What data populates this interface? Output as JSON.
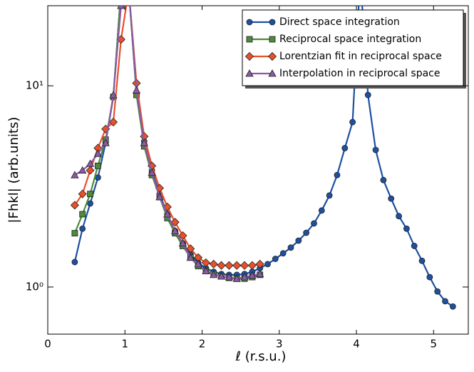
{
  "chart_data": {
    "type": "line",
    "log_y": true,
    "xlabel": "ℓ (r.s.u.)",
    "ylabel": "|Fhkl| (arb.units)",
    "xlim": [
      0,
      5.45
    ],
    "xticks": [
      0,
      1,
      2,
      3,
      4,
      5
    ],
    "ylim": [
      0.583,
      25
    ],
    "yticks": [
      {
        "value": 1,
        "label": "10⁰"
      },
      {
        "value": 10,
        "label": "10¹"
      }
    ],
    "legend": "upper right",
    "series": [
      {
        "name": "Direct space integration",
        "color": "#1d50a0",
        "marker": "circle",
        "x": [
          0.35,
          0.45,
          0.55,
          0.65,
          0.75,
          0.85,
          0.95,
          1.05,
          1.15,
          1.25,
          1.35,
          1.45,
          1.55,
          1.65,
          1.75,
          1.85,
          1.95,
          2.05,
          2.15,
          2.25,
          2.35,
          2.45,
          2.55,
          2.65,
          2.75,
          2.85,
          2.95,
          3.05,
          3.15,
          3.25,
          3.35,
          3.45,
          3.55,
          3.65,
          3.75,
          3.85,
          3.95,
          4.05,
          4.15,
          4.25,
          4.35,
          4.45,
          4.55,
          4.65,
          4.75,
          4.85,
          4.95,
          5.05,
          5.15,
          5.25
        ],
        "values": [
          1.33,
          1.95,
          2.6,
          3.5,
          5.2,
          8.8,
          30,
          30,
          9.2,
          5.3,
          3.8,
          2.9,
          2.3,
          1.9,
          1.65,
          1.45,
          1.32,
          1.24,
          1.19,
          1.16,
          1.15,
          1.15,
          1.16,
          1.19,
          1.24,
          1.3,
          1.38,
          1.47,
          1.57,
          1.7,
          1.86,
          2.07,
          2.4,
          2.85,
          3.6,
          4.9,
          6.6,
          35,
          9.0,
          4.8,
          3.4,
          2.75,
          2.25,
          1.95,
          1.6,
          1.35,
          1.12,
          0.95,
          0.85,
          0.8
        ]
      },
      {
        "name": "Reciprocal space integration",
        "color": "#4e8a3c",
        "marker": "square",
        "x": [
          0.35,
          0.45,
          0.55,
          0.65,
          0.75,
          0.85,
          0.95,
          1.05,
          1.15,
          1.25,
          1.35,
          1.45,
          1.55,
          1.65,
          1.75,
          1.85,
          1.95,
          2.05,
          2.15,
          2.25,
          2.35,
          2.45,
          2.55,
          2.65,
          2.75
        ],
        "values": [
          1.85,
          2.3,
          2.9,
          4.0,
          5.4,
          8.8,
          30,
          30,
          9.0,
          5.0,
          3.6,
          2.8,
          2.2,
          1.85,
          1.6,
          1.4,
          1.27,
          1.2,
          1.16,
          1.13,
          1.11,
          1.1,
          1.1,
          1.12,
          1.15
        ]
      },
      {
        "name": "Lorentzian fit in reciprocal space",
        "color": "#e8502a",
        "marker": "diamond",
        "x": [
          0.35,
          0.45,
          0.55,
          0.65,
          0.75,
          0.85,
          0.95,
          1.05,
          1.15,
          1.25,
          1.35,
          1.45,
          1.55,
          1.65,
          1.75,
          1.85,
          1.95,
          2.05,
          2.15,
          2.25,
          2.35,
          2.45,
          2.55,
          2.65,
          2.75
        ],
        "values": [
          2.55,
          2.9,
          3.8,
          4.9,
          6.1,
          6.6,
          17,
          30,
          10.3,
          5.6,
          4.0,
          3.1,
          2.5,
          2.1,
          1.8,
          1.55,
          1.4,
          1.32,
          1.3,
          1.28,
          1.28,
          1.28,
          1.28,
          1.28,
          1.3
        ]
      },
      {
        "name": "Interpolation in reciprocal space",
        "color": "#8a5aa8",
        "marker": "triangle",
        "x": [
          0.35,
          0.45,
          0.55,
          0.65,
          0.75,
          0.85,
          0.95,
          1.05,
          1.15,
          1.25,
          1.35,
          1.45,
          1.55,
          1.65,
          1.75,
          1.85,
          1.95,
          2.05,
          2.15,
          2.25,
          2.35,
          2.45,
          2.55,
          2.65,
          2.75
        ],
        "values": [
          3.6,
          3.8,
          4.1,
          4.6,
          5.2,
          9.0,
          25,
          30,
          9.5,
          5.2,
          3.7,
          2.8,
          2.3,
          1.9,
          1.65,
          1.4,
          1.3,
          1.2,
          1.15,
          1.13,
          1.12,
          1.1,
          1.12,
          1.14,
          1.16
        ]
      }
    ]
  }
}
